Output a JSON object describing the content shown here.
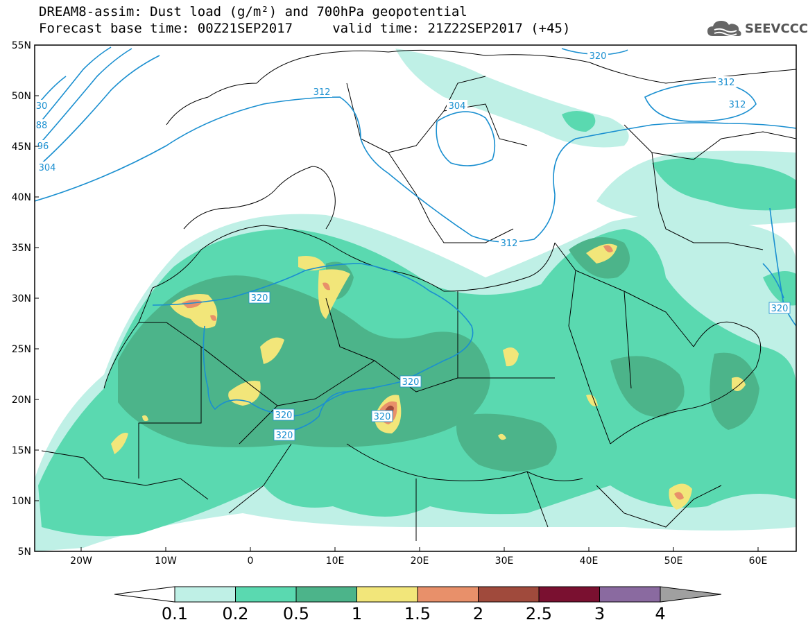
{
  "title": {
    "line1": "DREAM8-assim: Dust load (g/m²) and 700hPa geopotential",
    "line2": "Forecast base time: 00Z21SEP2017     valid time: 21Z22SEP2017 (+45)"
  },
  "logo": {
    "text": "SEEVCCC",
    "icon": "cloud-icon"
  },
  "axes": {
    "lat_labels": [
      "55N",
      "50N",
      "45N",
      "40N",
      "35N",
      "30N",
      "25N",
      "20N",
      "15N",
      "10N",
      "5N"
    ],
    "lon_labels": [
      "20W",
      "10W",
      "0",
      "10E",
      "20E",
      "30E",
      "40E",
      "50E",
      "60E"
    ]
  },
  "contour_labels": [
    "320",
    "312",
    "304",
    "312",
    "312",
    "30",
    "88",
    "96",
    "304",
    "320",
    "312",
    "320",
    "320",
    "320",
    "320",
    "320"
  ],
  "colorbar": {
    "labels": [
      "0.1",
      "0.2",
      "0.5",
      "1",
      "1.5",
      "2",
      "2.5",
      "3",
      "4"
    ],
    "colors": [
      "#ffffff",
      "#bff0e6",
      "#5ad9b0",
      "#4cb48a",
      "#f2e67a",
      "#e8906a",
      "#a04a3c",
      "#7a1030",
      "#8a6aa0",
      "#a0a0a0"
    ]
  },
  "colors": {
    "contour": "#1a8fd0",
    "dust_low": "#bff0e6",
    "dust_mid": "#5ad9b0",
    "dust_high": "#4cb48a",
    "dust_yellow": "#f2e67a",
    "dust_orange": "#e8906a",
    "dust_red": "#a04a3c"
  }
}
